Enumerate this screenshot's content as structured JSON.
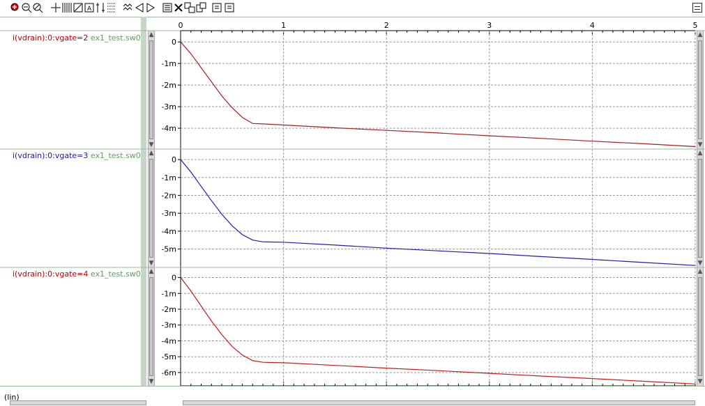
{
  "toolbar": {
    "icons": [
      "zoom-in-icon",
      "zoom-out-icon",
      "zoom-fit-icon",
      "cursor-cross-icon",
      "grid-icon",
      "edit-icon",
      "label-icon",
      "split-icon",
      "dotgrid-icon",
      "wave-icon",
      "left-arrow-icon",
      "right-arrow-icon",
      "delete-panel-icon",
      "delete-icon",
      "copy-icon",
      "paste-icon",
      "export-icon",
      "import-icon"
    ]
  },
  "x_axis": {
    "ticks": [
      "0",
      "1",
      "2",
      "3",
      "4",
      "5"
    ],
    "scale_label": "(lin)"
  },
  "colors": {
    "trace_vgate2": "#a32020",
    "trace_vgate3": "#1c1cb4",
    "trace_vgate4": "#c41c1c",
    "grid": "#9a9a9a",
    "accent": "#9ab89a"
  },
  "chart_data": [
    {
      "type": "line",
      "series": [
        {
          "name": "i(vdrain):0:vgate=2 ex1_test.sw0",
          "x": [
            0,
            0.1,
            0.2,
            0.3,
            0.4,
            0.5,
            0.6,
            0.7,
            0.8,
            1,
            1.5,
            2,
            2.5,
            3,
            3.5,
            4,
            4.5,
            5
          ],
          "y": [
            0,
            -0.55,
            -1.2,
            -1.85,
            -2.5,
            -3.05,
            -3.5,
            -3.78,
            -3.8,
            -3.85,
            -3.98,
            -4.1,
            -4.22,
            -4.35,
            -4.47,
            -4.6,
            -4.72,
            -4.85
          ]
        }
      ],
      "label_signal": "i(vdrain):0:vgate=2",
      "label_file": "ex1_test.sw0",
      "ytick_labels": [
        "0",
        "-1m",
        "-2m",
        "-3m",
        "-4m"
      ],
      "ylim": [
        -4.9,
        0.2
      ],
      "xlim": [
        0,
        5
      ],
      "grid": true
    },
    {
      "type": "line",
      "series": [
        {
          "name": "i(vdrain):0:vgate=3 ex1_test.sw0",
          "x": [
            0,
            0.1,
            0.2,
            0.3,
            0.4,
            0.5,
            0.6,
            0.7,
            0.8,
            1,
            1.5,
            2,
            2.5,
            3,
            3.5,
            4,
            4.5,
            5
          ],
          "y": [
            0,
            -0.7,
            -1.5,
            -2.3,
            -3.05,
            -3.7,
            -4.2,
            -4.5,
            -4.6,
            -4.62,
            -4.78,
            -4.95,
            -5.1,
            -5.25,
            -5.42,
            -5.58,
            -5.75,
            -5.92
          ]
        }
      ],
      "label_signal": "i(vdrain):0:vgate=3",
      "label_file": "ex1_test.sw0",
      "ytick_labels": [
        "0",
        "-1m",
        "-2m",
        "-3m",
        "-4m",
        "-5m"
      ],
      "ylim": [
        -5.95,
        0.2
      ],
      "xlim": [
        0,
        5
      ],
      "grid": true
    },
    {
      "type": "line",
      "series": [
        {
          "name": "i(vdrain):0:vgate=4 ex1_test.sw0",
          "x": [
            0,
            0.1,
            0.2,
            0.3,
            0.4,
            0.5,
            0.6,
            0.7,
            0.8,
            1,
            1.5,
            2,
            2.5,
            3,
            3.5,
            4,
            4.5,
            5
          ],
          "y": [
            0,
            -0.85,
            -1.8,
            -2.75,
            -3.6,
            -4.35,
            -4.9,
            -5.25,
            -5.35,
            -5.38,
            -5.55,
            -5.72,
            -5.88,
            -6.05,
            -6.22,
            -6.38,
            -6.55,
            -6.72
          ]
        }
      ],
      "label_signal": "i(vdrain):0:vgate=4",
      "label_file": "ex1_test.sw0",
      "ytick_labels": [
        "0",
        "-1m",
        "-2m",
        "-3m",
        "-4m",
        "-5m",
        "-6m"
      ],
      "ylim": [
        -6.75,
        0.2
      ],
      "xlim": [
        0,
        5
      ],
      "grid": true
    }
  ]
}
